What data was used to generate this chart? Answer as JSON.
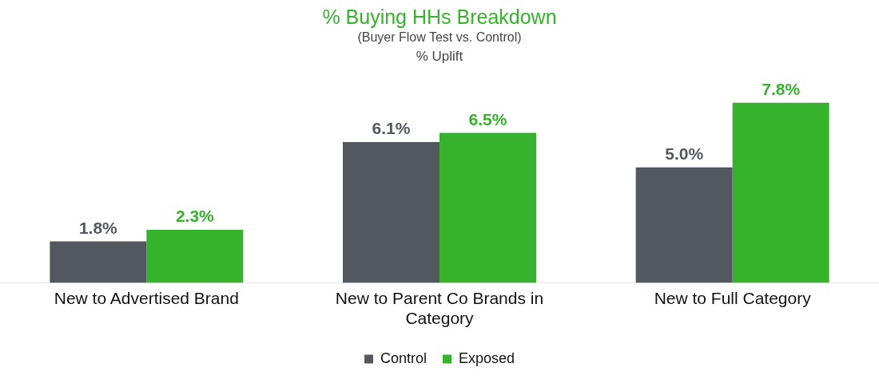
{
  "chart_data": {
    "type": "bar",
    "title": "% Buying HHs Breakdown",
    "subtitle": "(Buyer Flow Test vs. Control)",
    "annotations": [
      "% Uplift"
    ],
    "categories": [
      "New to Advertised Brand",
      "New to Parent Co Brands in Category",
      "New to Full Category"
    ],
    "series": [
      {
        "name": "Control",
        "color": "#53575e",
        "values": [
          1.8,
          6.1,
          5.0
        ],
        "value_labels": [
          "1.8%",
          "6.1%",
          "5.0%"
        ]
      },
      {
        "name": "Exposed",
        "color": "#36b22d",
        "values": [
          2.3,
          6.5,
          7.8
        ],
        "value_labels": [
          "2.3%",
          "6.5%",
          "7.8%"
        ]
      }
    ],
    "legend": "bottom",
    "grid": false
  }
}
